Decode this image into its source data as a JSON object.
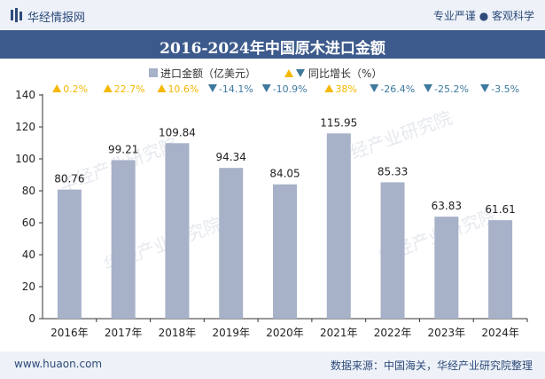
{
  "header": {
    "brand": "华经情报网",
    "tagline": "专业严谨 ● 客观科学"
  },
  "footer": {
    "website": "www.huaon.com",
    "source": "数据来源：中国海关，华经产业研究院整理"
  },
  "watermark": "华经产业研究院",
  "chart_data": {
    "type": "bar",
    "title": "2016-2024年中国原木进口金额",
    "categories": [
      "2016年",
      "2017年",
      "2018年",
      "2019年",
      "2020年",
      "2021年",
      "2022年",
      "2023年",
      "2024年"
    ],
    "series": [
      {
        "name": "进口金额（亿美元）",
        "values": [
          80.76,
          99.21,
          109.84,
          94.34,
          84.05,
          115.95,
          85.33,
          63.83,
          61.61
        ]
      }
    ],
    "growth": {
      "name": "同比增长（%）",
      "values": [
        0.2,
        22.7,
        10.6,
        -14.1,
        -10.9,
        38,
        -26.4,
        -25.2,
        -3.5
      ],
      "labels": [
        "0.2%",
        "22.7%",
        "10.6%",
        "-14.1%",
        "-10.9%",
        "38%",
        "-26.4%",
        "-25.2%",
        "-3.5%"
      ]
    },
    "ylim": [
      0,
      140
    ],
    "yticks": [
      0,
      20,
      40,
      60,
      80,
      100,
      120,
      140
    ],
    "colors": {
      "bar": "#a7b1c8",
      "up": "#f5b800",
      "down": "#3d7a9e",
      "axis": "#333333"
    },
    "legend_position": "top-center",
    "grid": false
  }
}
